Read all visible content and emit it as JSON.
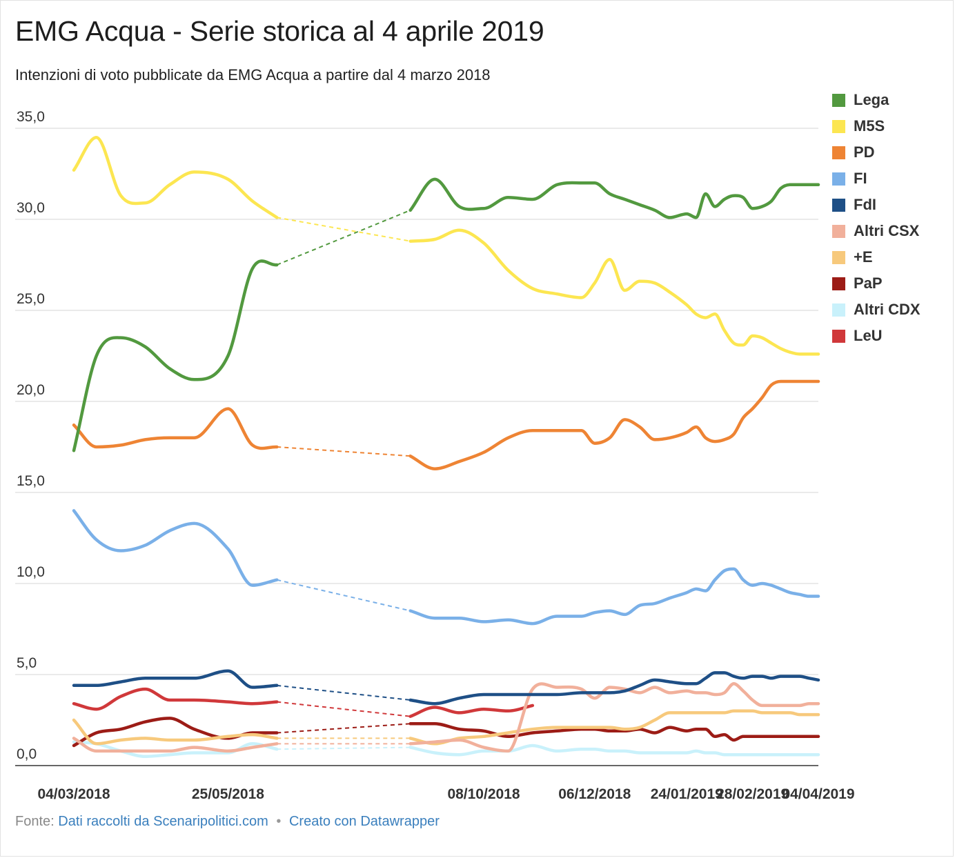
{
  "title": "EMG Acqua - Serie storica al 4 aprile 2019",
  "subtitle": "Intenzioni di voto pubblicate da EMG Acqua a partire dal 4 marzo 2018",
  "footer": {
    "source_prefix": "Fonte:",
    "source_link": "Dati raccolti da Scenaripolitici.com",
    "separator": "•",
    "credit_link": "Creato con Datawrapper"
  },
  "chart_data": {
    "type": "line",
    "title": "EMG Acqua - Serie storica al 4 aprile 2019",
    "subtitle": "Intenzioni di voto pubblicate da EMG Acqua a partire dal 4 marzo 2018",
    "x_ticks": [
      "04/03/2018",
      "25/05/2018",
      "08/10/2018",
      "06/12/2018",
      "24/01/2019",
      "28/02/2019",
      "04/04/2019"
    ],
    "y_ticks": [
      "0,0",
      "5,0",
      "10,0",
      "15,0",
      "20,0",
      "25,0",
      "30,0",
      "35,0"
    ],
    "ylim": [
      0,
      35
    ],
    "grid": true,
    "legend_position": "right",
    "x": [
      "2018-03-04",
      "2018-03-16",
      "2018-03-29",
      "2018-04-11",
      "2018-04-24",
      "2018-05-07",
      "2018-05-25",
      "2018-06-07",
      "2018-06-20",
      "2018-07-03",
      "2018-07-16",
      "2018-08-30",
      "2018-09-12",
      "2018-09-25",
      "2018-10-08",
      "2018-10-21",
      "2018-11-03",
      "2018-11-16",
      "2018-11-29",
      "2018-12-06",
      "2018-12-14",
      "2018-12-22",
      "2018-12-30",
      "2019-01-07",
      "2019-01-15",
      "2019-01-24",
      "2019-01-29",
      "2019-02-03",
      "2019-02-08",
      "2019-02-13",
      "2019-02-18",
      "2019-02-23",
      "2019-02-28",
      "2019-03-05",
      "2019-03-10",
      "2019-03-15",
      "2019-03-20",
      "2019-03-25",
      "2019-03-30",
      "2019-04-04"
    ],
    "series": [
      {
        "name": "Lega",
        "color": "#52993f",
        "values": [
          17.3,
          22.5,
          23.5,
          23.0,
          21.8,
          21.2,
          22.5,
          27.3,
          27.5,
          null,
          null,
          30.5,
          32.2,
          30.7,
          30.6,
          31.2,
          31.1,
          31.9,
          32.0,
          32.0,
          31.4,
          31.1,
          30.8,
          30.5,
          30.1,
          30.3,
          30.1,
          31.4,
          30.7,
          31.1,
          31.3,
          31.2,
          30.6,
          30.7,
          31.0,
          31.7,
          31.9,
          31.9,
          31.9,
          31.9
        ]
      },
      {
        "name": "M5S",
        "color": "#fce651",
        "values": [
          32.7,
          34.5,
          31.3,
          30.9,
          31.9,
          32.6,
          32.2,
          31.0,
          30.1,
          null,
          null,
          28.8,
          28.9,
          29.4,
          28.7,
          27.2,
          26.2,
          25.9,
          25.7,
          26.5,
          27.8,
          26.1,
          26.6,
          26.5,
          26.0,
          25.3,
          24.8,
          24.6,
          24.8,
          23.9,
          23.2,
          23.1,
          23.6,
          23.5,
          23.2,
          22.9,
          22.7,
          22.6,
          22.6,
          22.6
        ]
      },
      {
        "name": "PD",
        "color": "#ee8434",
        "values": [
          18.7,
          17.5,
          17.6,
          17.9,
          18.0,
          18.0,
          19.6,
          17.6,
          17.5,
          null,
          null,
          17.0,
          16.3,
          16.7,
          17.2,
          18.0,
          18.4,
          18.4,
          18.4,
          17.7,
          18.0,
          19.0,
          18.6,
          17.9,
          18.0,
          18.3,
          18.6,
          18.0,
          17.8,
          17.9,
          18.2,
          19.1,
          19.6,
          20.2,
          20.9,
          21.1,
          21.1,
          21.1,
          21.1,
          21.1
        ]
      },
      {
        "name": "FI",
        "color": "#7ab0e8",
        "values": [
          14.0,
          12.4,
          11.8,
          12.1,
          12.9,
          13.3,
          11.9,
          9.9,
          10.2,
          null,
          null,
          8.5,
          8.1,
          8.1,
          7.9,
          8.0,
          7.8,
          8.2,
          8.2,
          8.4,
          8.5,
          8.3,
          8.8,
          8.9,
          9.2,
          9.5,
          9.7,
          9.6,
          10.2,
          10.7,
          10.8,
          10.2,
          9.9,
          10.0,
          9.9,
          9.7,
          9.5,
          9.4,
          9.3,
          9.3
        ]
      },
      {
        "name": "FdI",
        "color": "#1e4f86",
        "values": [
          4.4,
          4.4,
          4.6,
          4.8,
          4.8,
          4.8,
          5.2,
          4.3,
          4.4,
          null,
          null,
          3.6,
          3.4,
          3.7,
          3.9,
          3.9,
          3.9,
          3.9,
          4.0,
          4.0,
          4.0,
          4.1,
          4.4,
          4.7,
          4.6,
          4.5,
          4.5,
          4.8,
          5.1,
          5.1,
          4.9,
          4.8,
          4.9,
          4.9,
          4.8,
          4.9,
          4.9,
          4.9,
          4.8,
          4.7
        ]
      },
      {
        "name": "Altri CSX",
        "color": "#f1b09b",
        "values": [
          1.5,
          0.8,
          0.8,
          0.8,
          0.8,
          1.0,
          0.8,
          1.0,
          1.2,
          null,
          null,
          1.2,
          1.3,
          1.4,
          1.0,
          0.8,
          4.2,
          4.3,
          4.2,
          3.7,
          4.3,
          4.2,
          4.0,
          4.3,
          4.0,
          4.1,
          4.0,
          4.0,
          3.9,
          4.0,
          4.5,
          4.1,
          3.6,
          3.3,
          3.3,
          3.3,
          3.3,
          3.3,
          3.4,
          3.4
        ]
      },
      {
        "name": "+E",
        "color": "#f7c97c",
        "values": [
          2.5,
          1.2,
          1.4,
          1.5,
          1.4,
          1.4,
          1.6,
          1.7,
          1.5,
          null,
          null,
          1.5,
          1.2,
          1.5,
          1.6,
          1.8,
          2.0,
          2.1,
          2.1,
          2.1,
          2.1,
          2.0,
          2.1,
          2.5,
          2.9,
          2.9,
          2.9,
          2.9,
          2.9,
          2.9,
          3.0,
          3.0,
          3.0,
          2.9,
          2.9,
          2.9,
          2.9,
          2.8,
          2.8,
          2.8
        ]
      },
      {
        "name": "PaP",
        "color": "#9c1c16",
        "values": [
          1.1,
          1.8,
          2.0,
          2.4,
          2.6,
          2.0,
          1.5,
          1.8,
          1.8,
          null,
          null,
          2.3,
          2.3,
          2.0,
          1.9,
          1.6,
          1.8,
          1.9,
          2.0,
          2.0,
          1.9,
          1.9,
          2.0,
          1.8,
          2.1,
          1.9,
          2.0,
          2.0,
          1.6,
          1.7,
          1.4,
          1.6,
          1.6,
          1.6,
          1.6,
          1.6,
          1.6,
          1.6,
          1.6,
          1.6
        ]
      },
      {
        "name": "Altri CDX",
        "color": "#c9f1fb",
        "values": [
          1.3,
          1.2,
          0.8,
          0.5,
          0.6,
          0.7,
          0.7,
          1.2,
          0.9,
          null,
          null,
          1.0,
          0.7,
          0.6,
          0.8,
          0.8,
          1.1,
          0.8,
          0.9,
          0.9,
          0.8,
          0.8,
          0.7,
          0.7,
          0.7,
          0.7,
          0.8,
          0.7,
          0.7,
          0.6,
          0.6,
          0.6,
          0.6,
          0.6,
          0.6,
          0.6,
          0.6,
          0.6,
          0.6,
          0.6
        ]
      },
      {
        "name": "LeU",
        "color": "#d0383a",
        "values": [
          3.4,
          3.1,
          3.8,
          4.2,
          3.6,
          3.6,
          3.5,
          3.4,
          3.5,
          null,
          null,
          2.7,
          3.2,
          2.9,
          3.1,
          3.0,
          3.3,
          null,
          null,
          null,
          null,
          null,
          null,
          null,
          null,
          null,
          null,
          null,
          null,
          null,
          null,
          null,
          null,
          null,
          null,
          null,
          null,
          null,
          null,
          null
        ]
      }
    ]
  }
}
